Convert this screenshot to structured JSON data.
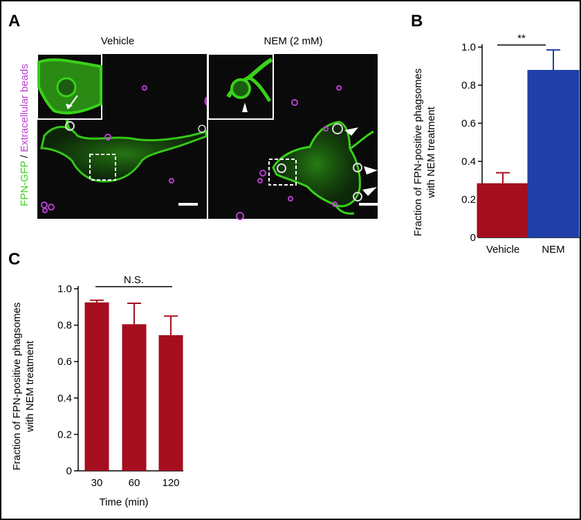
{
  "panel_a": {
    "letter": "A",
    "vehicle_label": "Vehicle",
    "nem_label": "NEM (2 mM)",
    "ylabel_green": "FPN-GFP",
    "ylabel_sep": " / ",
    "ylabel_magenta": "Extracellular beads",
    "colors": {
      "green": "#39d11a",
      "magenta": "#b93fd0",
      "background": "#0a0a0a"
    }
  },
  "chart_data": [
    {
      "panel": "B",
      "type": "bar",
      "categories": [
        "Vehicle",
        "NEM"
      ],
      "values": [
        0.285,
        0.88
      ],
      "errors": [
        0.055,
        0.105
      ],
      "colors": [
        "#a50e1e",
        "#2040a8"
      ],
      "ylabel_line1": "Fraction of FPN-positive phagsomes",
      "ylabel_line2": "with NEM treatment",
      "xlabel": "",
      "ylim": [
        0,
        1.0
      ],
      "yticks": [
        "0",
        "0.2",
        "0.4",
        "0.6",
        "0.8",
        "1.0"
      ],
      "ytick_values": [
        0,
        0.2,
        0.4,
        0.6,
        0.8,
        1.0
      ],
      "significance": "**"
    },
    {
      "panel": "C",
      "type": "bar",
      "categories": [
        "30",
        "60",
        "120"
      ],
      "values": [
        0.925,
        0.805,
        0.745
      ],
      "errors": [
        0.012,
        0.115,
        0.105
      ],
      "colors": [
        "#a50e1e",
        "#a50e1e",
        "#a50e1e"
      ],
      "ylabel_line1": "Fraction of FPN-positive phagsomes",
      "ylabel_line2": "with NEM treatment",
      "xlabel": "Time (min)",
      "ylim": [
        0,
        1.0
      ],
      "yticks": [
        "0",
        "0.2",
        "0.4",
        "0.6",
        "0.8",
        "1.0"
      ],
      "ytick_values": [
        0,
        0.2,
        0.4,
        0.6,
        0.8,
        1.0
      ],
      "significance": "N.S."
    }
  ]
}
